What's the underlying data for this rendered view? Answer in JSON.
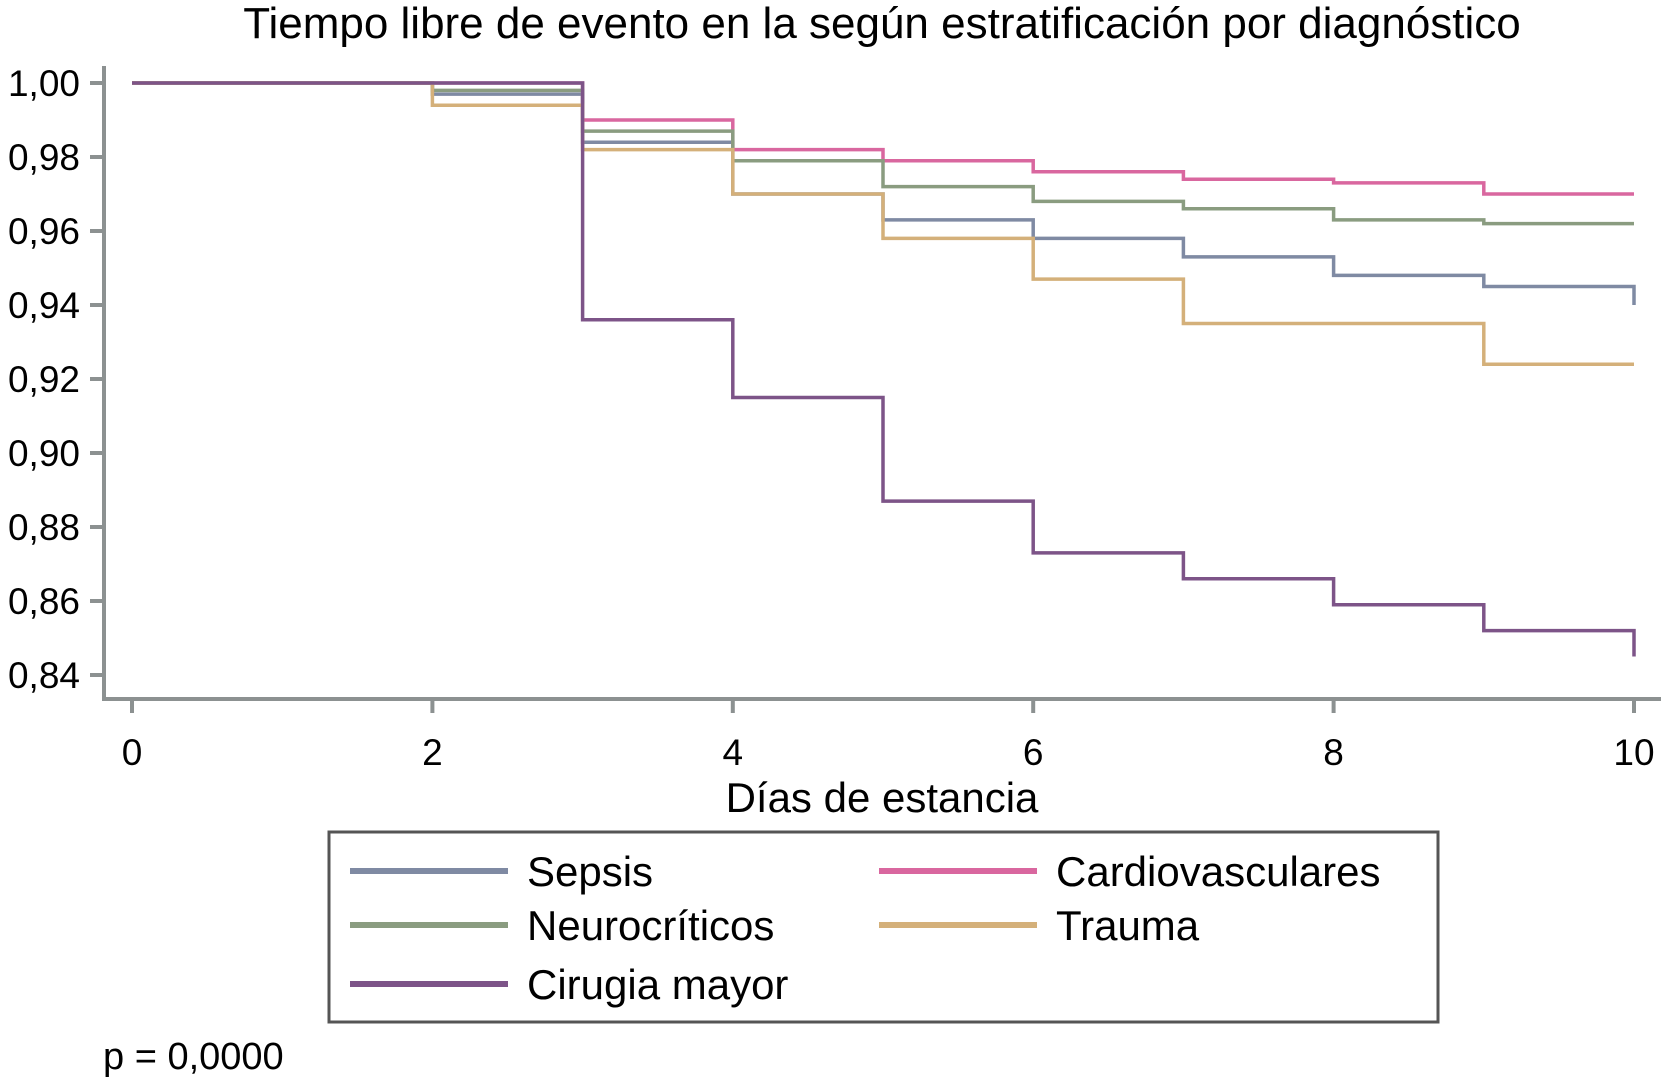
{
  "chart_data": {
    "type": "line",
    "step": true,
    "title": "Tiempo libre de evento en la según estratificación por diagnóstico",
    "xlabel": "Días de estancia",
    "ylabel": "",
    "xlim": [
      0,
      10
    ],
    "ylim": [
      0.84,
      1.0
    ],
    "xticks": [
      "0",
      "2",
      "4",
      "6",
      "8",
      "10"
    ],
    "yticks": [
      "1,00",
      "0,98",
      "0,96",
      "0,94",
      "0,92",
      "0,90",
      "0,88",
      "0,86",
      "0,84"
    ],
    "grid": false,
    "legend_position": "bottom",
    "annotation": "p = 0,0000",
    "series": [
      {
        "name": "Sepsis",
        "color": "#7f8aa3",
        "x": [
          0,
          2,
          3,
          4,
          5,
          6,
          7,
          8,
          9,
          10
        ],
        "y": [
          1.0,
          0.997,
          0.984,
          0.97,
          0.963,
          0.958,
          0.953,
          0.948,
          0.945,
          0.94
        ]
      },
      {
        "name": "Cardiovasculares",
        "color": "#d9679f",
        "x": [
          0,
          3,
          4,
          5,
          6,
          7,
          8,
          9,
          10
        ],
        "y": [
          1.0,
          0.99,
          0.982,
          0.979,
          0.976,
          0.974,
          0.973,
          0.97,
          0.97
        ]
      },
      {
        "name": "Neurocríticos",
        "color": "#8a9c80",
        "x": [
          0,
          2,
          3,
          4,
          5,
          6,
          7,
          8,
          9,
          10
        ],
        "y": [
          1.0,
          0.998,
          0.987,
          0.979,
          0.972,
          0.968,
          0.966,
          0.963,
          0.962,
          0.962
        ]
      },
      {
        "name": "Trauma",
        "color": "#d4b07a",
        "x": [
          0,
          2,
          3,
          4,
          5,
          6,
          7,
          9,
          10
        ],
        "y": [
          1.0,
          0.994,
          0.982,
          0.97,
          0.958,
          0.947,
          0.935,
          0.924,
          0.924
        ]
      },
      {
        "name": "Cirugia mayor",
        "color": "#7d5488",
        "x": [
          0,
          3,
          4,
          5,
          6,
          7,
          8,
          9,
          10
        ],
        "y": [
          1.0,
          0.936,
          0.915,
          0.887,
          0.873,
          0.866,
          0.859,
          0.852,
          0.845
        ]
      }
    ]
  }
}
